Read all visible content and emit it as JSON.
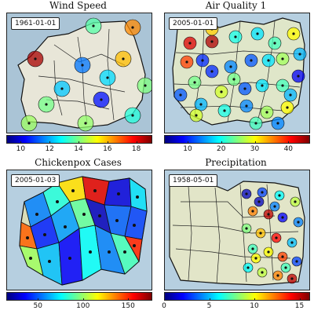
{
  "panels": [
    {
      "id": "wind",
      "title": "Wind Speed",
      "date": "1961-01-01",
      "colorbar": {
        "min": 9,
        "max": 19,
        "ticks": [
          "10",
          "12",
          "14",
          "16",
          "18"
        ],
        "tick_values": [
          10,
          12,
          14,
          16,
          18
        ]
      },
      "marker_values": [
        18.6,
        16.4,
        15.9,
        11.4,
        12.4,
        12.2,
        10.4,
        14.2,
        13.1,
        14.0,
        14.3,
        13.6,
        13.9
      ],
      "background": "#e8e6d8",
      "water": "#aac4d6"
    },
    {
      "id": "air",
      "title": "Air Quality 1",
      "date": "2005-01-01",
      "colorbar": {
        "min": 3,
        "max": 46,
        "ticks": [
          "10",
          "20",
          "30",
          "40"
        ],
        "tick_values": [
          10,
          20,
          30,
          40
        ]
      },
      "marker_values": [
        42,
        44,
        38,
        20,
        18,
        22,
        30,
        26,
        16,
        12,
        14,
        10,
        24,
        28,
        12,
        18,
        22,
        8,
        16,
        20,
        14,
        26,
        30,
        32,
        12,
        18,
        24,
        10,
        16,
        22,
        28,
        14
      ],
      "background": "#dfe6c9",
      "water": "#b6cfe0"
    },
    {
      "id": "chickenpox",
      "title": "Chickenpox Cases",
      "date": "2005-01-03",
      "colorbar": {
        "min": 15,
        "max": 175,
        "ticks": [
          "50",
          "100",
          "150"
        ],
        "tick_values": [
          50,
          100,
          150
        ]
      },
      "marker_values": [
        55,
        80,
        120,
        160,
        30,
        70,
        140,
        40,
        60,
        90,
        25,
        50,
        45,
        100,
        65,
        35,
        75,
        55,
        85,
        150
      ],
      "background": "#d9ddb8",
      "water": "#b6cfe0"
    },
    {
      "id": "precip",
      "title": "Precipitation",
      "date": "1958-05-01",
      "colorbar": {
        "min": 0,
        "max": 16,
        "ticks": [
          "0",
          "5",
          "10",
          "15"
        ],
        "tick_values": [
          0,
          5,
          10,
          15
        ]
      },
      "marker_values": [
        1,
        3,
        6,
        9,
        12,
        15,
        2,
        4,
        8,
        11,
        14,
        5,
        7,
        10,
        13,
        3,
        6,
        9,
        12,
        15,
        1,
        4,
        7,
        10
      ],
      "background": "#e2e5c8",
      "water": "#b6cfe0"
    }
  ]
}
